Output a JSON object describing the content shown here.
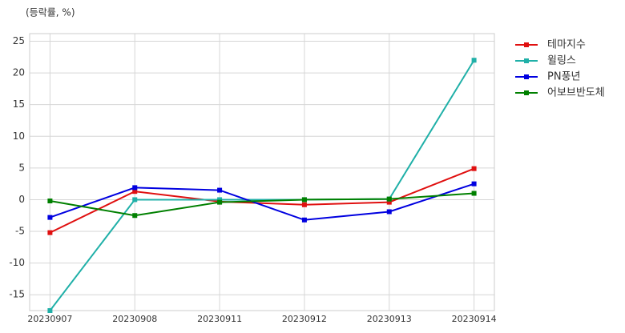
{
  "chart_data": {
    "type": "line",
    "y_label": "(등락률, %)",
    "categories": [
      "20230907",
      "20230908",
      "20230911",
      "20230912",
      "20230913",
      "20230914"
    ],
    "series": [
      {
        "name": "테마지수",
        "color": "#e01010",
        "values": [
          -5.2,
          1.3,
          -0.3,
          -0.8,
          -0.4,
          4.9
        ]
      },
      {
        "name": "윌링스",
        "color": "#20b0a8",
        "values": [
          -17.5,
          0.0,
          0.0,
          0.0,
          0.1,
          22.0
        ]
      },
      {
        "name": "PN풍년",
        "color": "#0000e0",
        "values": [
          -2.8,
          1.9,
          1.5,
          -3.2,
          -1.9,
          2.5
        ]
      },
      {
        "name": "어보브반도체",
        "color": "#008000",
        "values": [
          -0.2,
          -2.5,
          -0.4,
          0.0,
          0.1,
          1.0
        ]
      }
    ],
    "ylim": [
      -17.5,
      26.2
    ],
    "yticks": [
      -15,
      -10,
      -5,
      0,
      5,
      10,
      15,
      20,
      25
    ],
    "grid": true,
    "legend": "outside-right"
  }
}
